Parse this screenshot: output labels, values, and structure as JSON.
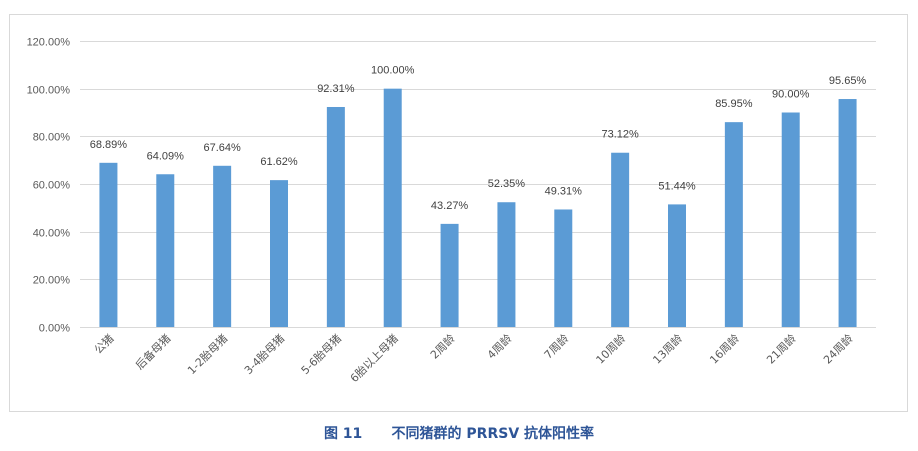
{
  "caption": {
    "label": "图 11",
    "text": "不同猪群的 PRRSV 抗体阳性率"
  },
  "chart_data": {
    "type": "bar",
    "title": "",
    "xlabel": "",
    "ylabel": "",
    "categories": [
      "公猪",
      "后备母猪",
      "1-2胎母猪",
      "3-4胎母猪",
      "5-6胎母猪",
      "6胎以上母猪",
      "2周龄",
      "4周龄",
      "7周龄",
      "10周龄",
      "13周龄",
      "16周龄",
      "21周龄",
      "24周龄"
    ],
    "values": [
      68.89,
      64.09,
      67.64,
      61.62,
      92.31,
      100.0,
      43.27,
      52.35,
      49.31,
      73.12,
      51.44,
      85.95,
      90.0,
      95.65
    ],
    "data_labels": [
      "68.89%",
      "64.09%",
      "67.64%",
      "61.62%",
      "92.31%",
      "100.00%",
      "43.27%",
      "52.35%",
      "49.31%",
      "73.12%",
      "51.44%",
      "85.95%",
      "90.00%",
      "95.65%"
    ],
    "ylim": [
      0,
      120
    ],
    "yticks": [
      0,
      20,
      40,
      60,
      80,
      100,
      120
    ],
    "ytick_labels": [
      "0.00%",
      "20.00%",
      "40.00%",
      "60.00%",
      "80.00%",
      "100.00%",
      "120.00%"
    ],
    "grid": true,
    "legend": "none",
    "bar_color": "#5b9bd5"
  }
}
